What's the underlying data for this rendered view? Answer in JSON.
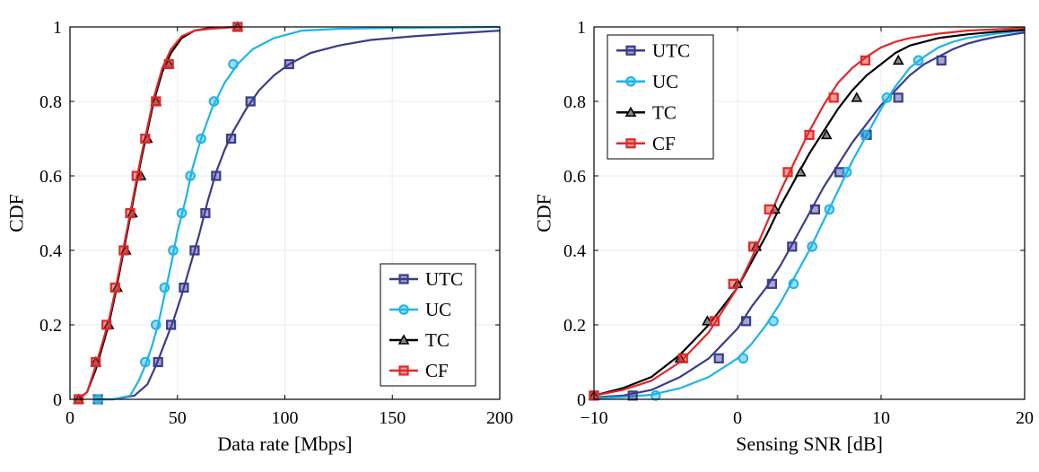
{
  "chart_data": [
    {
      "type": "line",
      "xlabel": "Data rate [Mbps]",
      "ylabel": "CDF",
      "xlim": [
        0,
        200
      ],
      "ylim": [
        0,
        1
      ],
      "xticks": [
        0,
        50,
        100,
        150,
        200
      ],
      "yticks": [
        0,
        0.2,
        0.4,
        0.6,
        0.8,
        1
      ],
      "xtick_labels": [
        "0",
        "50",
        "100",
        "150",
        "200"
      ],
      "ytick_labels": [
        "0",
        "0.2",
        "0.4",
        "0.6",
        "0.8",
        "1"
      ],
      "grid": true,
      "legend_position": "bottom-right",
      "series": [
        {
          "name": "UTC",
          "color": "#3a3c8c",
          "marker": "square",
          "curve": [
            [
              12,
              0
            ],
            [
              20,
              0
            ],
            [
              30,
              0.01
            ],
            [
              36,
              0.04
            ],
            [
              40,
              0.09
            ],
            [
              44,
              0.15
            ],
            [
              48,
              0.21
            ],
            [
              52,
              0.28
            ],
            [
              56,
              0.36
            ],
            [
              60,
              0.44
            ],
            [
              64,
              0.53
            ],
            [
              68,
              0.61
            ],
            [
              72,
              0.67
            ],
            [
              76,
              0.72
            ],
            [
              82,
              0.78
            ],
            [
              88,
              0.83
            ],
            [
              95,
              0.87
            ],
            [
              102,
              0.9
            ],
            [
              112,
              0.93
            ],
            [
              125,
              0.95
            ],
            [
              140,
              0.965
            ],
            [
              160,
              0.975
            ],
            [
              180,
              0.983
            ],
            [
              200,
              0.99
            ]
          ],
          "markers": [
            [
              13,
              0
            ],
            [
              41,
              0.1
            ],
            [
              47,
              0.2
            ],
            [
              53,
              0.3
            ],
            [
              58,
              0.4
            ],
            [
              63,
              0.5
            ],
            [
              68,
              0.6
            ],
            [
              75,
              0.7
            ],
            [
              84,
              0.8
            ],
            [
              102,
              0.9
            ]
          ]
        },
        {
          "name": "UC",
          "color": "#1eb4e6",
          "marker": "circle",
          "curve": [
            [
              12,
              0
            ],
            [
              20,
              0
            ],
            [
              28,
              0.01
            ],
            [
              32,
              0.05
            ],
            [
              35,
              0.09
            ],
            [
              38,
              0.14
            ],
            [
              41,
              0.2
            ],
            [
              44,
              0.28
            ],
            [
              47,
              0.36
            ],
            [
              50,
              0.45
            ],
            [
              54,
              0.54
            ],
            [
              57,
              0.62
            ],
            [
              61,
              0.7
            ],
            [
              66,
              0.78
            ],
            [
              72,
              0.85
            ],
            [
              78,
              0.9
            ],
            [
              85,
              0.94
            ],
            [
              95,
              0.97
            ],
            [
              108,
              0.99
            ],
            [
              125,
              0.995
            ],
            [
              150,
              0.997
            ],
            [
              200,
              1.0
            ]
          ],
          "markers": [
            [
              13,
              0
            ],
            [
              35,
              0.1
            ],
            [
              40,
              0.2
            ],
            [
              44,
              0.3
            ],
            [
              48,
              0.4
            ],
            [
              52,
              0.5
            ],
            [
              56,
              0.6
            ],
            [
              61,
              0.7
            ],
            [
              67,
              0.8
            ],
            [
              76,
              0.9
            ]
          ]
        },
        {
          "name": "TC",
          "color": "#000000",
          "marker": "triangle",
          "curve": [
            [
              4,
              0
            ],
            [
              8,
              0.02
            ],
            [
              12,
              0.08
            ],
            [
              15,
              0.14
            ],
            [
              18,
              0.2
            ],
            [
              21,
              0.28
            ],
            [
              24,
              0.37
            ],
            [
              27,
              0.46
            ],
            [
              30,
              0.55
            ],
            [
              33,
              0.64
            ],
            [
              36,
              0.72
            ],
            [
              39,
              0.8
            ],
            [
              43,
              0.88
            ],
            [
              47,
              0.93
            ],
            [
              52,
              0.97
            ],
            [
              58,
              0.99
            ],
            [
              65,
              0.997
            ],
            [
              78,
              1.0
            ]
          ],
          "markers": [
            [
              4,
              0
            ],
            [
              12,
              0.1
            ],
            [
              18,
              0.2
            ],
            [
              22,
              0.3
            ],
            [
              26,
              0.4
            ],
            [
              29,
              0.5
            ],
            [
              33,
              0.6
            ],
            [
              36,
              0.7
            ],
            [
              40,
              0.8
            ],
            [
              46,
              0.9
            ],
            [
              78,
              1.0
            ]
          ]
        },
        {
          "name": "CF",
          "color": "#e02828",
          "marker": "square",
          "curve": [
            [
              4,
              0
            ],
            [
              8,
              0.02
            ],
            [
              12,
              0.09
            ],
            [
              15,
              0.15
            ],
            [
              18,
              0.21
            ],
            [
              21,
              0.29
            ],
            [
              24,
              0.38
            ],
            [
              27,
              0.47
            ],
            [
              30,
              0.56
            ],
            [
              33,
              0.65
            ],
            [
              36,
              0.73
            ],
            [
              39,
              0.81
            ],
            [
              43,
              0.89
            ],
            [
              47,
              0.94
            ],
            [
              52,
              0.975
            ],
            [
              58,
              0.99
            ],
            [
              65,
              0.995
            ],
            [
              78,
              1.0
            ]
          ],
          "markers": [
            [
              4,
              0
            ],
            [
              12,
              0.1
            ],
            [
              17,
              0.2
            ],
            [
              21,
              0.3
            ],
            [
              25,
              0.4
            ],
            [
              28,
              0.5
            ],
            [
              31,
              0.6
            ],
            [
              35,
              0.7
            ],
            [
              40,
              0.8
            ],
            [
              46,
              0.9
            ],
            [
              78,
              1.0
            ]
          ]
        }
      ]
    },
    {
      "type": "line",
      "xlabel": "Sensing SNR [dB]",
      "ylabel": "CDF",
      "xlim": [
        -10,
        20
      ],
      "ylim": [
        0,
        1
      ],
      "xticks": [
        -10,
        0,
        10,
        20
      ],
      "yticks": [
        0,
        0.2,
        0.4,
        0.6,
        0.8,
        1
      ],
      "xtick_labels": [
        "−10",
        "0",
        "10",
        "20"
      ],
      "ytick_labels": [
        "0",
        "0.2",
        "0.4",
        "0.6",
        "0.8",
        "1"
      ],
      "grid": true,
      "legend_position": "top-left",
      "series": [
        {
          "name": "UTC",
          "color": "#3a3c8c",
          "marker": "square",
          "curve": [
            [
              -10,
              0.005
            ],
            [
              -8,
              0.01
            ],
            [
              -6,
              0.025
            ],
            [
              -4,
              0.06
            ],
            [
              -2,
              0.11
            ],
            [
              -1,
              0.15
            ],
            [
              0,
              0.19
            ],
            [
              1,
              0.25
            ],
            [
              2,
              0.3
            ],
            [
              3,
              0.36
            ],
            [
              4,
              0.43
            ],
            [
              5,
              0.5
            ],
            [
              6,
              0.57
            ],
            [
              7,
              0.63
            ],
            [
              8,
              0.69
            ],
            [
              9,
              0.74
            ],
            [
              10,
              0.79
            ],
            [
              11,
              0.83
            ],
            [
              12,
              0.87
            ],
            [
              13,
              0.9
            ],
            [
              14,
              0.92
            ],
            [
              15,
              0.94
            ],
            [
              16,
              0.955
            ],
            [
              17,
              0.965
            ],
            [
              18,
              0.973
            ],
            [
              20,
              0.985
            ]
          ],
          "markers": [
            [
              -10,
              0.01
            ],
            [
              -7.3,
              0.01
            ],
            [
              -1.3,
              0.11
            ],
            [
              0.6,
              0.21
            ],
            [
              2.4,
              0.31
            ],
            [
              3.8,
              0.41
            ],
            [
              5.4,
              0.51
            ],
            [
              7.1,
              0.61
            ],
            [
              9,
              0.71
            ],
            [
              11.2,
              0.81
            ],
            [
              14.2,
              0.91
            ]
          ]
        },
        {
          "name": "UC",
          "color": "#1eb4e6",
          "marker": "circle",
          "curve": [
            [
              -10,
              0.003
            ],
            [
              -8,
              0.006
            ],
            [
              -6,
              0.012
            ],
            [
              -4,
              0.03
            ],
            [
              -2,
              0.06
            ],
            [
              0,
              0.11
            ],
            [
              1,
              0.15
            ],
            [
              2,
              0.2
            ],
            [
              3,
              0.26
            ],
            [
              4,
              0.33
            ],
            [
              5,
              0.4
            ],
            [
              6,
              0.48
            ],
            [
              7,
              0.56
            ],
            [
              8,
              0.64
            ],
            [
              9,
              0.71
            ],
            [
              10,
              0.78
            ],
            [
              11,
              0.84
            ],
            [
              12,
              0.89
            ],
            [
              13,
              0.92
            ],
            [
              14,
              0.945
            ],
            [
              15,
              0.96
            ],
            [
              16,
              0.97
            ],
            [
              18,
              0.982
            ],
            [
              20,
              0.99
            ]
          ],
          "markers": [
            [
              -10,
              0.01
            ],
            [
              -5.7,
              0.01
            ],
            [
              0.4,
              0.11
            ],
            [
              2.5,
              0.21
            ],
            [
              3.9,
              0.31
            ],
            [
              5.2,
              0.41
            ],
            [
              6.4,
              0.51
            ],
            [
              7.6,
              0.61
            ],
            [
              8.9,
              0.71
            ],
            [
              10.4,
              0.81
            ],
            [
              12.6,
              0.91
            ]
          ]
        },
        {
          "name": "TC",
          "color": "#000000",
          "marker": "triangle",
          "curve": [
            [
              -10,
              0.01
            ],
            [
              -8,
              0.03
            ],
            [
              -6,
              0.06
            ],
            [
              -4,
              0.12
            ],
            [
              -2,
              0.2
            ],
            [
              0,
              0.3
            ],
            [
              1,
              0.37
            ],
            [
              2,
              0.44
            ],
            [
              3,
              0.52
            ],
            [
              4,
              0.59
            ],
            [
              5,
              0.66
            ],
            [
              6,
              0.72
            ],
            [
              7,
              0.78
            ],
            [
              8,
              0.83
            ],
            [
              9,
              0.87
            ],
            [
              10,
              0.9
            ],
            [
              11,
              0.93
            ],
            [
              12,
              0.95
            ],
            [
              14,
              0.97
            ],
            [
              16,
              0.98
            ],
            [
              18,
              0.987
            ],
            [
              20,
              0.992
            ]
          ],
          "markers": [
            [
              -10,
              0.01
            ],
            [
              -4,
              0.11
            ],
            [
              -2.1,
              0.21
            ],
            [
              0,
              0.31
            ],
            [
              1.3,
              0.41
            ],
            [
              2.6,
              0.51
            ],
            [
              4.4,
              0.61
            ],
            [
              6.2,
              0.71
            ],
            [
              8.3,
              0.81
            ],
            [
              11.2,
              0.91
            ]
          ]
        },
        {
          "name": "CF",
          "color": "#e02828",
          "marker": "square",
          "curve": [
            [
              -10,
              0.01
            ],
            [
              -8,
              0.025
            ],
            [
              -6,
              0.05
            ],
            [
              -4,
              0.1
            ],
            [
              -2,
              0.18
            ],
            [
              0,
              0.3
            ],
            [
              1,
              0.38
            ],
            [
              2,
              0.47
            ],
            [
              3,
              0.56
            ],
            [
              4,
              0.64
            ],
            [
              5,
              0.72
            ],
            [
              6,
              0.79
            ],
            [
              7,
              0.85
            ],
            [
              8,
              0.89
            ],
            [
              9,
              0.92
            ],
            [
              10,
              0.945
            ],
            [
              11,
              0.96
            ],
            [
              12,
              0.97
            ],
            [
              14,
              0.982
            ],
            [
              16,
              0.99
            ],
            [
              20,
              0.997
            ]
          ],
          "markers": [
            [
              -10,
              0.01
            ],
            [
              -3.8,
              0.11
            ],
            [
              -1.6,
              0.21
            ],
            [
              -0.3,
              0.31
            ],
            [
              1.1,
              0.41
            ],
            [
              2.2,
              0.51
            ],
            [
              3.5,
              0.61
            ],
            [
              5,
              0.71
            ],
            [
              6.7,
              0.81
            ],
            [
              8.9,
              0.91
            ]
          ]
        }
      ]
    }
  ]
}
